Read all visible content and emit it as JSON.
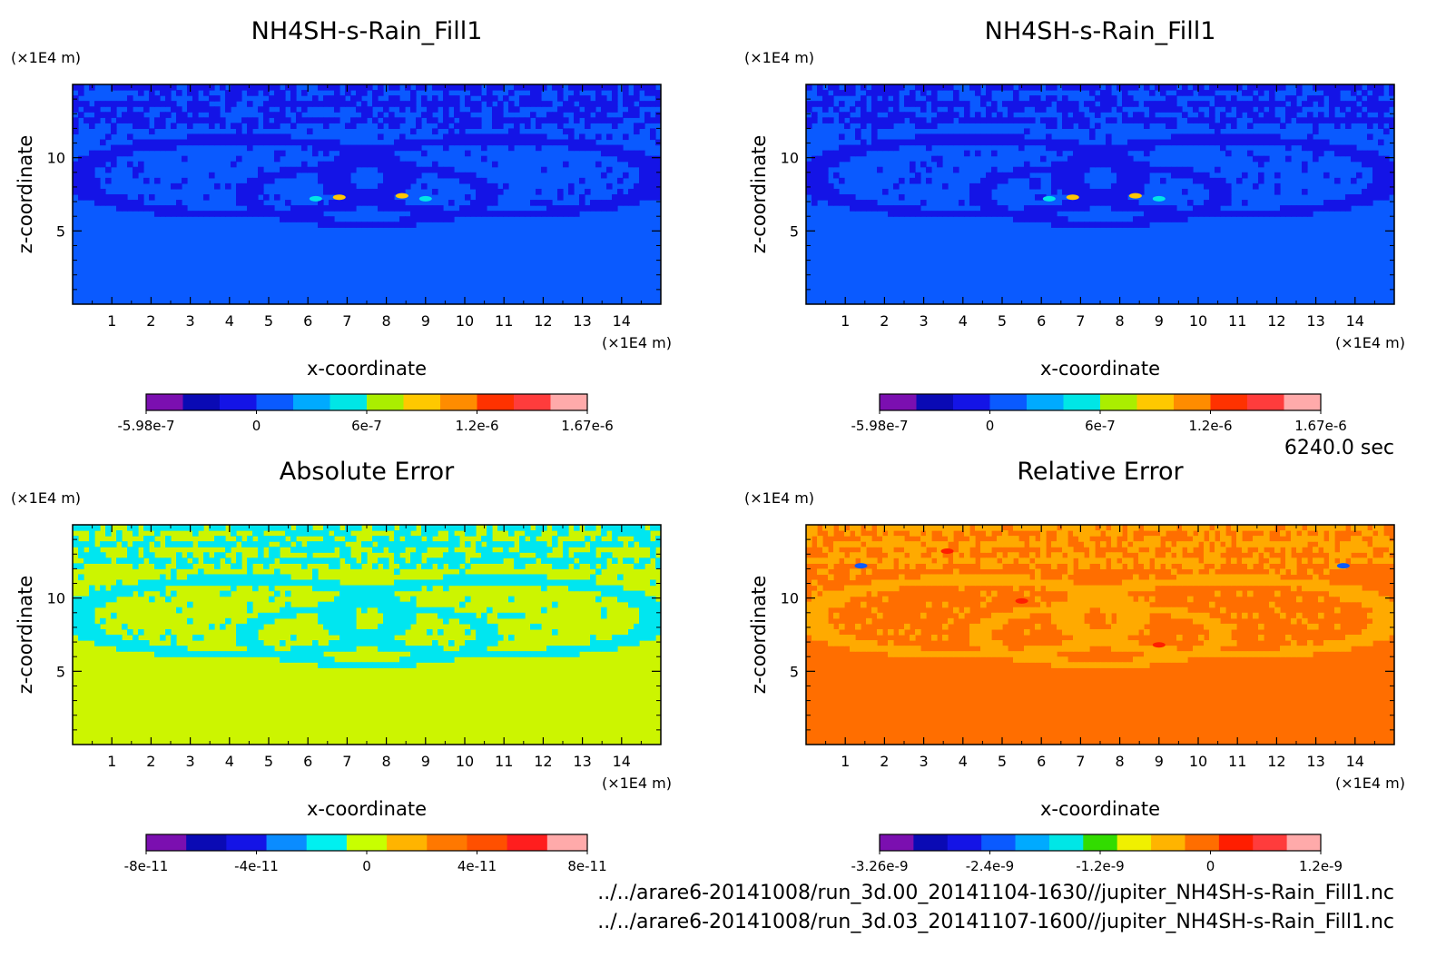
{
  "time_label": "6240.0 sec",
  "source_files": [
    "../../arare6-20141008/run_3d.00_20141104-1630//jupiter_NH4SH-s-Rain_Fill1.nc",
    "../../arare6-20141008/run_3d.03_20141107-1600//jupiter_NH4SH-s-Rain_Fill1.nc"
  ],
  "chart_data": [
    {
      "type": "heatmap",
      "title": "NH4SH-s-Rain_Fill1",
      "xlabel": "x-coordinate",
      "ylabel": "z-coordinate",
      "x_unit": "(×1E4 m)",
      "y_unit": "(×1E4 m)",
      "xlim": [
        0,
        15
      ],
      "ylim": [
        0,
        15
      ],
      "x_ticks": [
        1,
        2,
        3,
        4,
        5,
        6,
        7,
        8,
        9,
        10,
        11,
        12,
        13,
        14
      ],
      "y_ticks": [
        5,
        10
      ],
      "background_level": 0,
      "colorbar": {
        "colors": [
          "#7b0fb0",
          "#0a0ab4",
          "#1414e6",
          "#0a5aff",
          "#00aaff",
          "#00e6e6",
          "#aaee00",
          "#ffc800",
          "#ff8c00",
          "#ff3200",
          "#ff3c3c",
          "#ffaaaa"
        ],
        "tick_labels": [
          "-5.98e-7",
          "0",
          "6e-7",
          "1.2e-6",
          "1.67e-6"
        ]
      },
      "palette": {
        "background": "#0a5aff",
        "pattern": "#1414e6",
        "accent": "#00e6e6",
        "hot": "#ffc800"
      }
    },
    {
      "type": "heatmap",
      "title": "NH4SH-s-Rain_Fill1",
      "xlabel": "x-coordinate",
      "ylabel": "z-coordinate",
      "x_unit": "(×1E4 m)",
      "y_unit": "(×1E4 m)",
      "xlim": [
        0,
        15
      ],
      "ylim": [
        0,
        15
      ],
      "x_ticks": [
        1,
        2,
        3,
        4,
        5,
        6,
        7,
        8,
        9,
        10,
        11,
        12,
        13,
        14
      ],
      "y_ticks": [
        5,
        10
      ],
      "background_level": 0,
      "colorbar": {
        "colors": [
          "#7b0fb0",
          "#0a0ab4",
          "#1414e6",
          "#0a5aff",
          "#00aaff",
          "#00e6e6",
          "#aaee00",
          "#ffc800",
          "#ff8c00",
          "#ff3200",
          "#ff3c3c",
          "#ffaaaa"
        ],
        "tick_labels": [
          "-5.98e-7",
          "0",
          "6e-7",
          "1.2e-6",
          "1.67e-6"
        ]
      },
      "palette": {
        "background": "#0a5aff",
        "pattern": "#1414e6",
        "accent": "#00e6e6",
        "hot": "#ffc800"
      }
    },
    {
      "type": "heatmap",
      "title": "Absolute Error",
      "xlabel": "x-coordinate",
      "ylabel": "z-coordinate",
      "x_unit": "(×1E4 m)",
      "y_unit": "(×1E4 m)",
      "xlim": [
        0,
        15
      ],
      "ylim": [
        0,
        15
      ],
      "x_ticks": [
        1,
        2,
        3,
        4,
        5,
        6,
        7,
        8,
        9,
        10,
        11,
        12,
        13,
        14
      ],
      "y_ticks": [
        5,
        10
      ],
      "background_level": 0,
      "colorbar": {
        "colors": [
          "#7b0fb0",
          "#0a0ab4",
          "#1414e6",
          "#0a8cff",
          "#00f0f0",
          "#c8ff00",
          "#ffb400",
          "#ff7800",
          "#ff5000",
          "#ff1e1e",
          "#ffaaaa"
        ],
        "tick_labels": [
          "-8e-11",
          "-4e-11",
          "0",
          "4e-11",
          "8e-11"
        ]
      },
      "palette": {
        "background": "#ccf500",
        "pattern": "#00e6f0",
        "accent": "#00e6f0",
        "hot": "#00e6f0"
      }
    },
    {
      "type": "heatmap",
      "title": "Relative Error",
      "xlabel": "x-coordinate",
      "ylabel": "z-coordinate",
      "x_unit": "(×1E4 m)",
      "y_unit": "(×1E4 m)",
      "xlim": [
        0,
        15
      ],
      "ylim": [
        0,
        15
      ],
      "x_ticks": [
        1,
        2,
        3,
        4,
        5,
        6,
        7,
        8,
        9,
        10,
        11,
        12,
        13,
        14
      ],
      "y_ticks": [
        5,
        10
      ],
      "background_level": 0,
      "colorbar": {
        "colors": [
          "#7b0fb0",
          "#0a0ab4",
          "#1414e6",
          "#0a5aff",
          "#00aaff",
          "#00e6e6",
          "#32dc00",
          "#f0f000",
          "#ffb400",
          "#ff6e00",
          "#ff1e00",
          "#ff3c3c",
          "#ffaaaa"
        ],
        "tick_labels": [
          "-3.26e-9",
          "-2.4e-9",
          "-1.2e-9",
          "0",
          "1.2e-9"
        ]
      },
      "palette": {
        "background": "#ff6e00",
        "pattern": "#ffaa00",
        "accent": "#ff1e00",
        "hot": "#0a5aff"
      }
    }
  ]
}
